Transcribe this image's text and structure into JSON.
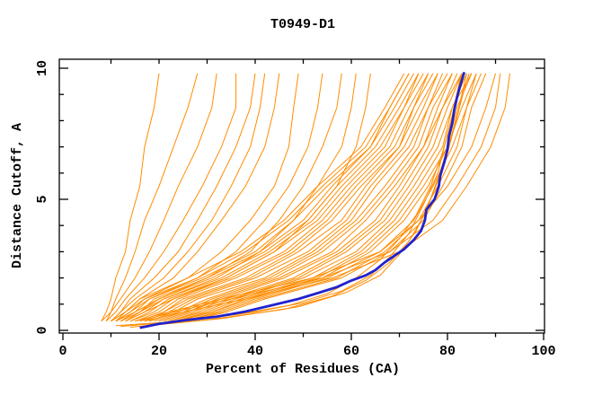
{
  "chart_data": {
    "type": "line",
    "title": "T0949-D1",
    "xlabel": "Percent of Residues (CA)",
    "ylabel": "Distance Cutoff, A",
    "xlim": [
      0,
      100
    ],
    "ylim": [
      0,
      10
    ],
    "x_major_ticks": [
      0,
      20,
      40,
      60,
      80,
      100
    ],
    "x_minor_ticks": [
      10,
      30,
      50,
      70,
      90
    ],
    "y_labeled_ticks": [
      0,
      5,
      10
    ],
    "y_minor_ticks": [
      1,
      2,
      3,
      4,
      6,
      7,
      8,
      9
    ],
    "grid": false,
    "legend": "none",
    "colors": {
      "models": "#ff8c00",
      "best_model": "#2222cc",
      "axis": "#000000",
      "background": "#ffffff"
    },
    "y_levels": [
      0.35,
      0.7,
      1.2,
      2,
      3,
      4.2,
      5.5,
      7,
      8.5,
      9.8
    ],
    "orange_x_by_level": [
      [
        10,
        13,
        16,
        26,
        37,
        46,
        53,
        62,
        67,
        71
      ],
      [
        11,
        14,
        17,
        28,
        38,
        47,
        54,
        63,
        68,
        72
      ],
      [
        11,
        15,
        18,
        29,
        40,
        48,
        55,
        64,
        68,
        72
      ],
      [
        12,
        16,
        19,
        30,
        41,
        50,
        56,
        64,
        69,
        73
      ],
      [
        13,
        16,
        20,
        31,
        42,
        51,
        57,
        65,
        70,
        74
      ],
      [
        13,
        17,
        21,
        33,
        43,
        52,
        58,
        66,
        71,
        74
      ],
      [
        14,
        18,
        22,
        34,
        44,
        53,
        59,
        67,
        71,
        75
      ],
      [
        14,
        19,
        23,
        35,
        46,
        54,
        60,
        68,
        72,
        76
      ],
      [
        15,
        20,
        24,
        36,
        47,
        55,
        61,
        69,
        73,
        76
      ],
      [
        16,
        21,
        25,
        38,
        48,
        56,
        62,
        70,
        73,
        77
      ],
      [
        16,
        21,
        26,
        39,
        49,
        58,
        63,
        70,
        74,
        78
      ],
      [
        17,
        22,
        27,
        40,
        51,
        59,
        64,
        71,
        75,
        78
      ],
      [
        18,
        23,
        28,
        42,
        52,
        60,
        65,
        72,
        76,
        79
      ],
      [
        18,
        24,
        30,
        43,
        53,
        61,
        67,
        73,
        76,
        80
      ],
      [
        19,
        25,
        31,
        44,
        54,
        62,
        68,
        74,
        77,
        81
      ],
      [
        20,
        26,
        32,
        45,
        56,
        63,
        69,
        75,
        78,
        81
      ],
      [
        20,
        26,
        33,
        46,
        57,
        65,
        70,
        75,
        79,
        82
      ],
      [
        21,
        27,
        34,
        48,
        58,
        66,
        71,
        76,
        79,
        83
      ],
      [
        22,
        28,
        35,
        49,
        59,
        67,
        72,
        77,
        80,
        83
      ],
      [
        22,
        29,
        36,
        50,
        61,
        68,
        73,
        78,
        81,
        84
      ],
      [
        23,
        30,
        37,
        52,
        62,
        69,
        74,
        79,
        81,
        85
      ],
      [
        23,
        31,
        38,
        53,
        63,
        70,
        75,
        80,
        82,
        85
      ],
      [
        24,
        31,
        39,
        54,
        64,
        71,
        76,
        80,
        83,
        86
      ],
      [
        25,
        32,
        40,
        55,
        66,
        73,
        77,
        81,
        84,
        86
      ],
      [
        25,
        33,
        41,
        57,
        67,
        74,
        78,
        82,
        84,
        87
      ],
      [
        26,
        34,
        42,
        58,
        68,
        75,
        79,
        83,
        85,
        88
      ],
      [
        8,
        9,
        10,
        11,
        13,
        14,
        16,
        17,
        19,
        20
      ],
      [
        8,
        10,
        11,
        13,
        15,
        17,
        20,
        23,
        26,
        28
      ],
      [
        9,
        10,
        12,
        15,
        18,
        21,
        24,
        28,
        31,
        32
      ],
      [
        9,
        11,
        13,
        17,
        21,
        25,
        29,
        33,
        36,
        36
      ],
      [
        10,
        12,
        14,
        19,
        24,
        28,
        32,
        36,
        39,
        40
      ],
      [
        10,
        12,
        15,
        21,
        26,
        31,
        35,
        39,
        41,
        42
      ],
      [
        11,
        13,
        16,
        23,
        28,
        33,
        38,
        42,
        44,
        45
      ],
      [
        10,
        13,
        17,
        26,
        33,
        39,
        44,
        47,
        48,
        49
      ],
      [
        11,
        14,
        18,
        28,
        36,
        42,
        47,
        51,
        53,
        54
      ],
      [
        12,
        15,
        20,
        30,
        39,
        45,
        50,
        54,
        57,
        58
      ],
      [
        12,
        16,
        21,
        32,
        41,
        48,
        53,
        58,
        60,
        61
      ],
      [
        13,
        17,
        23,
        34,
        44,
        51,
        57,
        61,
        63,
        64
      ],
      [
        15,
        22,
        33,
        52,
        66,
        74,
        80,
        85,
        88,
        90
      ],
      [
        17,
        25,
        38,
        56,
        70,
        79,
        84,
        89,
        92,
        93
      ],
      [
        16,
        23,
        35,
        54,
        68,
        77,
        82,
        87,
        90,
        91
      ]
    ],
    "orange_xy_series": [
      [
        [
          12,
          0.15
        ],
        [
          25,
          0.35
        ],
        [
          40,
          0.7
        ],
        [
          50,
          1.05
        ],
        [
          58,
          1.5
        ],
        [
          64,
          2.1
        ],
        [
          68,
          2.8
        ],
        [
          72,
          3.7
        ],
        [
          75,
          4.8
        ],
        [
          78,
          6
        ],
        [
          80,
          7.5
        ],
        [
          82,
          8.8
        ],
        [
          83,
          9.8
        ]
      ],
      [
        [
          14,
          0.12
        ],
        [
          30,
          0.4
        ],
        [
          46,
          0.8
        ],
        [
          56,
          1.3
        ],
        [
          63,
          1.9
        ],
        [
          68,
          2.6
        ],
        [
          72,
          3.4
        ],
        [
          75.5,
          4.5
        ],
        [
          78,
          5.8
        ],
        [
          80.5,
          7.2
        ],
        [
          82.5,
          8.6
        ],
        [
          84,
          9.8
        ]
      ],
      [
        [
          11,
          0.18
        ],
        [
          22,
          0.32
        ],
        [
          36,
          0.6
        ],
        [
          47,
          0.95
        ],
        [
          55,
          1.4
        ],
        [
          61,
          2
        ],
        [
          66,
          2.7
        ],
        [
          70,
          3.5
        ],
        [
          73.5,
          4.4
        ],
        [
          76.5,
          5.5
        ],
        [
          79,
          6.8
        ],
        [
          81,
          8.2
        ],
        [
          82.5,
          9.5
        ],
        [
          83,
          9.8
        ]
      ],
      [
        [
          16,
          0.15
        ],
        [
          33,
          0.45
        ],
        [
          49,
          0.9
        ],
        [
          59,
          1.45
        ],
        [
          66,
          2.1
        ],
        [
          70,
          2.9
        ],
        [
          73.5,
          3.8
        ],
        [
          76.5,
          5
        ],
        [
          79.5,
          6.4
        ],
        [
          81.5,
          7.8
        ],
        [
          83.5,
          9.2
        ],
        [
          84.5,
          9.8
        ]
      ]
    ],
    "blue_series": [
      [
        16,
        0.1
      ],
      [
        20,
        0.25
      ],
      [
        26,
        0.4
      ],
      [
        32,
        0.52
      ],
      [
        38,
        0.72
      ],
      [
        44,
        0.98
      ],
      [
        49,
        1.2
      ],
      [
        53,
        1.42
      ],
      [
        57,
        1.65
      ],
      [
        60,
        1.9
      ],
      [
        63,
        2.1
      ],
      [
        65,
        2.3
      ],
      [
        67,
        2.6
      ],
      [
        69,
        2.85
      ],
      [
        71,
        3.1
      ],
      [
        73,
        3.45
      ],
      [
        74.5,
        3.8
      ],
      [
        75.3,
        4.2
      ],
      [
        75.6,
        4.6
      ],
      [
        77.3,
        5.0
      ],
      [
        78.2,
        5.5
      ],
      [
        78.5,
        5.9
      ],
      [
        79.3,
        6.4
      ],
      [
        80,
        6.9
      ],
      [
        80.3,
        7.4
      ],
      [
        81,
        7.9
      ],
      [
        81.4,
        8.4
      ],
      [
        82,
        8.9
      ],
      [
        82.6,
        9.3
      ],
      [
        83.5,
        9.85
      ]
    ]
  }
}
